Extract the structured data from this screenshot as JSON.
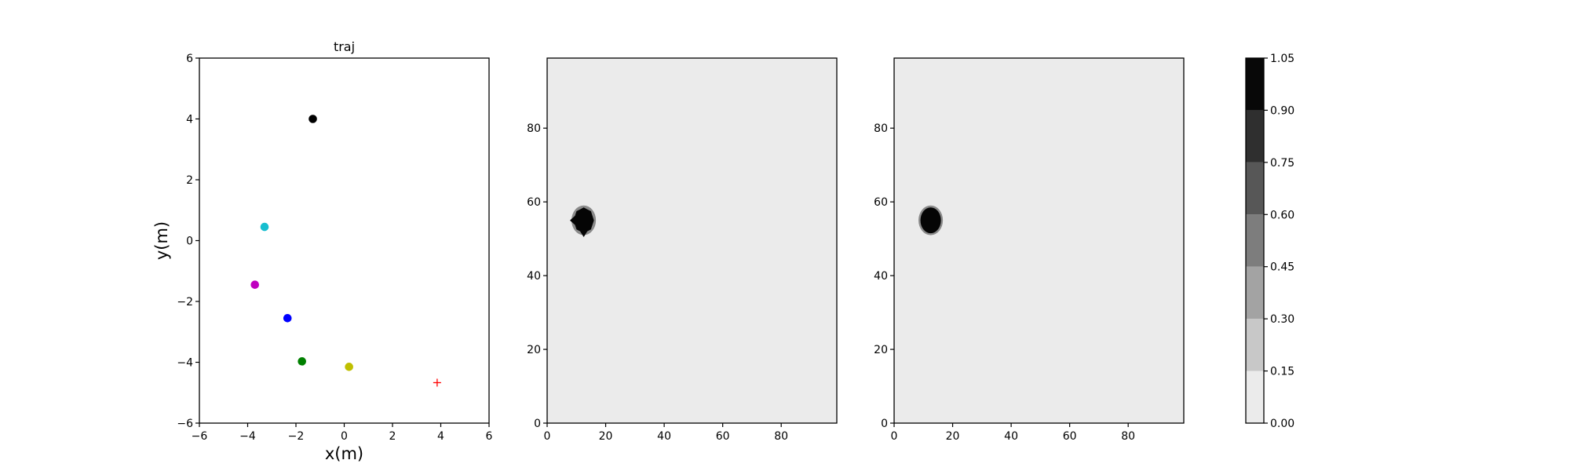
{
  "chart_data": [
    {
      "type": "scatter",
      "title": "traj",
      "xlabel": "x(m)",
      "ylabel": "y(m)",
      "xlim": [
        -6,
        6
      ],
      "ylim": [
        -6,
        6
      ],
      "xticks": [
        "−6",
        "−4",
        "−2",
        "0",
        "2",
        "4",
        "6"
      ],
      "yticks": [
        "−6",
        "−4",
        "−2",
        "0",
        "2",
        "4",
        "6"
      ],
      "grid": false,
      "points": [
        {
          "x": -1.3,
          "y": 4.0,
          "color": "#000000",
          "marker": "circle"
        },
        {
          "x": -3.3,
          "y": 0.45,
          "color": "#17becf",
          "marker": "circle"
        },
        {
          "x": -3.7,
          "y": -1.45,
          "color": "#bf00bf",
          "marker": "circle"
        },
        {
          "x": -2.35,
          "y": -2.55,
          "color": "#0000ff",
          "marker": "circle"
        },
        {
          "x": -1.75,
          "y": -3.97,
          "color": "#008000",
          "marker": "circle"
        },
        {
          "x": 0.2,
          "y": -4.15,
          "color": "#bfbf00",
          "marker": "circle"
        },
        {
          "x": 3.85,
          "y": -4.67,
          "color": "#ff0000",
          "marker": "plus"
        }
      ]
    },
    {
      "type": "heatmap",
      "title": "",
      "xlim": [
        0,
        99
      ],
      "ylim": [
        0,
        99
      ],
      "xticks": [
        "0",
        "20",
        "40",
        "60",
        "80"
      ],
      "yticks": [
        "0",
        "20",
        "40",
        "60",
        "80"
      ],
      "background_value": 0.0,
      "blob": {
        "center_x": 12.5,
        "center_y": 55,
        "radius": 3.5,
        "value": 1.05,
        "edge": "jagged"
      }
    },
    {
      "type": "heatmap",
      "title": "",
      "xlim": [
        0,
        99
      ],
      "ylim": [
        0,
        99
      ],
      "xticks": [
        "0",
        "20",
        "40",
        "60",
        "80"
      ],
      "yticks": [
        "0",
        "20",
        "40",
        "60",
        "80"
      ],
      "background_value": 0.0,
      "blob": {
        "center_x": 12.5,
        "center_y": 55,
        "radius": 3.5,
        "value": 1.05,
        "edge": "smooth"
      }
    }
  ],
  "colorbar": {
    "ticks": [
      "0.00",
      "0.15",
      "0.30",
      "0.45",
      "0.60",
      "0.75",
      "0.90",
      "1.05"
    ],
    "levels": [
      0.0,
      0.15,
      0.3,
      0.45,
      0.6,
      0.75,
      0.9,
      1.05
    ],
    "colors": [
      "#ebebeb",
      "#c8c8c8",
      "#a3a3a3",
      "#7d7d7d",
      "#575757",
      "#2f2f2f",
      "#080808"
    ]
  }
}
